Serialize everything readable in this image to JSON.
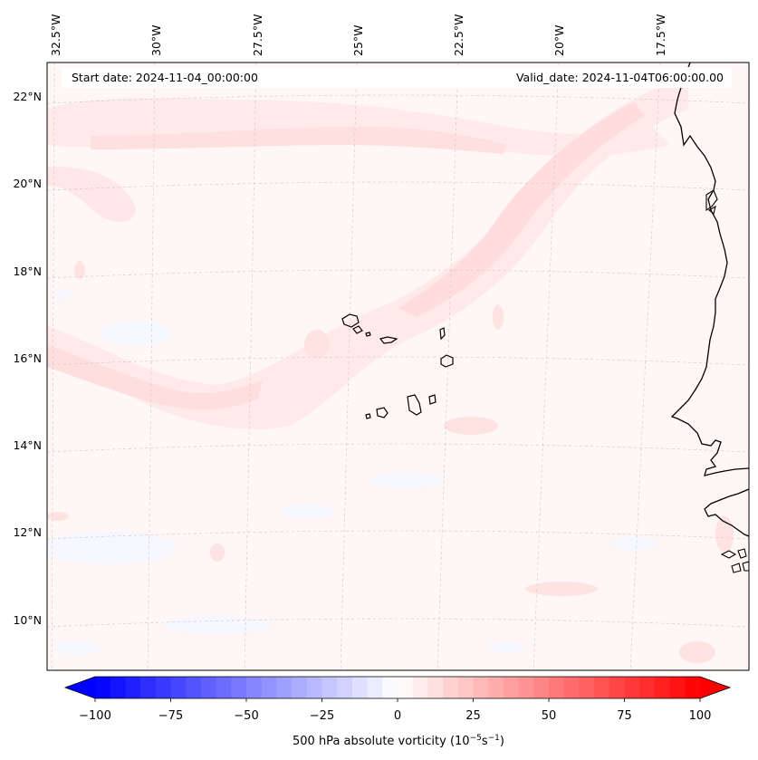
{
  "map": {
    "start_date_label": "Start date: 2024-11-04_00:00:00",
    "valid_date_label": "Valid_date: 2024-11-04T06:00:00.00",
    "lon_labels": [
      "32.5°W",
      "30°W",
      "27.5°W",
      "25°W",
      "22.5°W",
      "20°W",
      "17.5°W"
    ],
    "lat_labels": [
      "22°N",
      "20°N",
      "18°N",
      "16°N",
      "14°N",
      "12°N",
      "10°N"
    ],
    "field_colors": {
      "background": "#fff6f6",
      "band_light": "#ffe9e9",
      "band_medium": "#ffdcdc",
      "negative_patch": "#f7f8ff",
      "coastline": "#000000",
      "gridline": "#c8c8c8"
    }
  },
  "colorbar": {
    "label_main": "500 hPa absolute vorticity (10",
    "label_exp1": "−5",
    "label_mid": "s",
    "label_exp2": "−1",
    "label_end": ")",
    "tick_labels": [
      "−100",
      "−75",
      "−50",
      "−25",
      "0",
      "25",
      "50",
      "75",
      "100"
    ],
    "range": [
      -100,
      100
    ],
    "colormap": "bwr"
  }
}
